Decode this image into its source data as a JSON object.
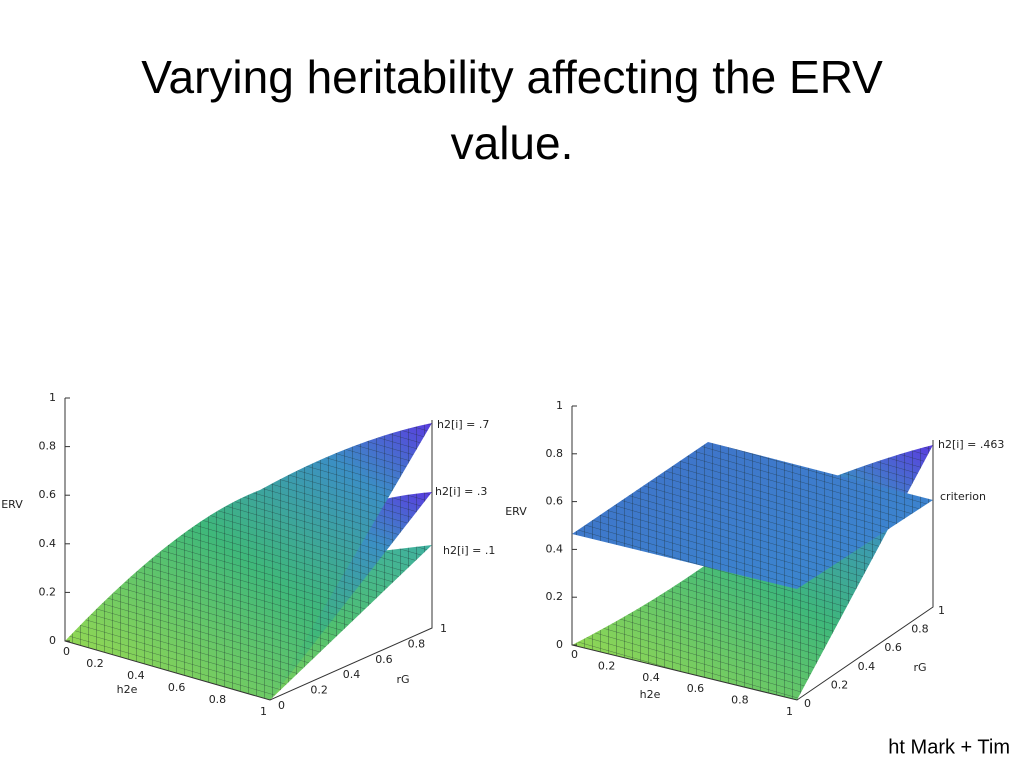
{
  "title": "Varying heritability affecting the ERV value.",
  "plots": [
    {
      "z_label": "ERV",
      "x_label": "h2e",
      "y_label": "rG",
      "z_ticks": [
        "0",
        "0.2",
        "0.4",
        "0.6",
        "0.8",
        "1"
      ],
      "x_ticks": [
        "0",
        "0.2",
        "0.4",
        "0.6",
        "0.8",
        "1"
      ],
      "y_ticks": [
        "0",
        "0.2",
        "0.4",
        "0.6",
        "0.8",
        "1"
      ],
      "surface_labels": [
        "h2[i] = .7",
        "h2[i] = .3",
        "h2[i] = .1"
      ]
    },
    {
      "z_label": "ERV",
      "x_label": "h2e",
      "y_label": "rG",
      "z_ticks": [
        "0",
        "0.2",
        "0.4",
        "0.6",
        "0.8",
        "1"
      ],
      "x_ticks": [
        "0",
        "0.2",
        "0.4",
        "0.6",
        "0.8",
        "1"
      ],
      "y_ticks": [
        "0",
        "0.2",
        "0.4",
        "0.6",
        "0.8",
        "1"
      ],
      "surface_labels": [
        "h2[i] = .463",
        "criterion"
      ]
    }
  ],
  "credit": "ht Mark + Tim"
}
